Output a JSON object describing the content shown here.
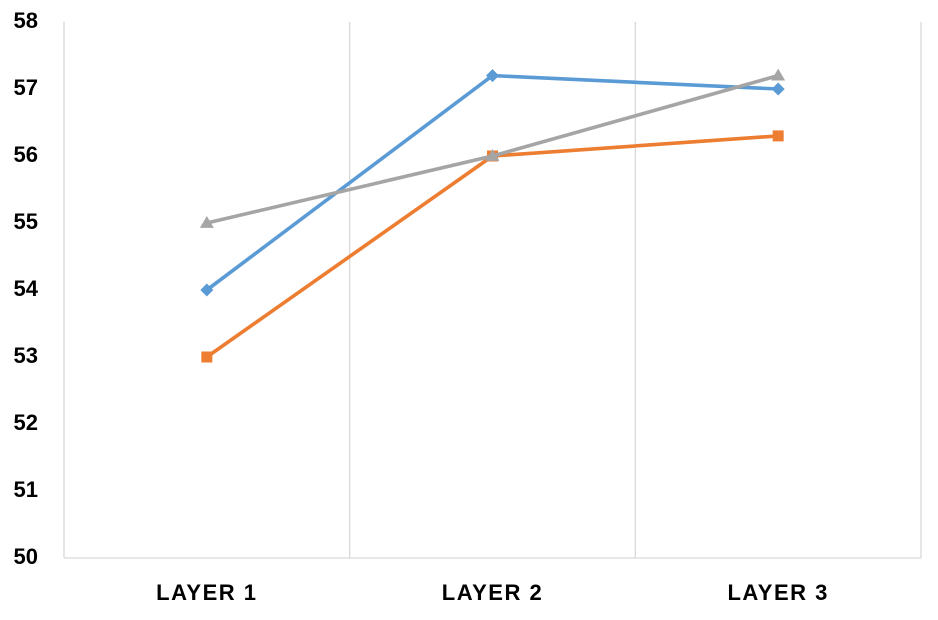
{
  "chart_data": {
    "type": "line",
    "title": "",
    "xlabel": "",
    "ylabel": "",
    "categories": [
      "LAYER 1",
      "LAYER 2",
      "LAYER 3"
    ],
    "ylim": [
      50,
      58
    ],
    "yticks": [
      50,
      51,
      52,
      53,
      54,
      55,
      56,
      57,
      58
    ],
    "grid": "vertical",
    "legend": "none",
    "series": [
      {
        "values": [
          54,
          57.2,
          57
        ],
        "color": "#5B9BD5",
        "marker": "diamond"
      },
      {
        "values": [
          53,
          56,
          56.3
        ],
        "color": "#ED7D31",
        "marker": "square"
      },
      {
        "values": [
          55,
          56,
          57.2
        ],
        "color": "#A5A5A5",
        "marker": "triangle"
      }
    ]
  }
}
